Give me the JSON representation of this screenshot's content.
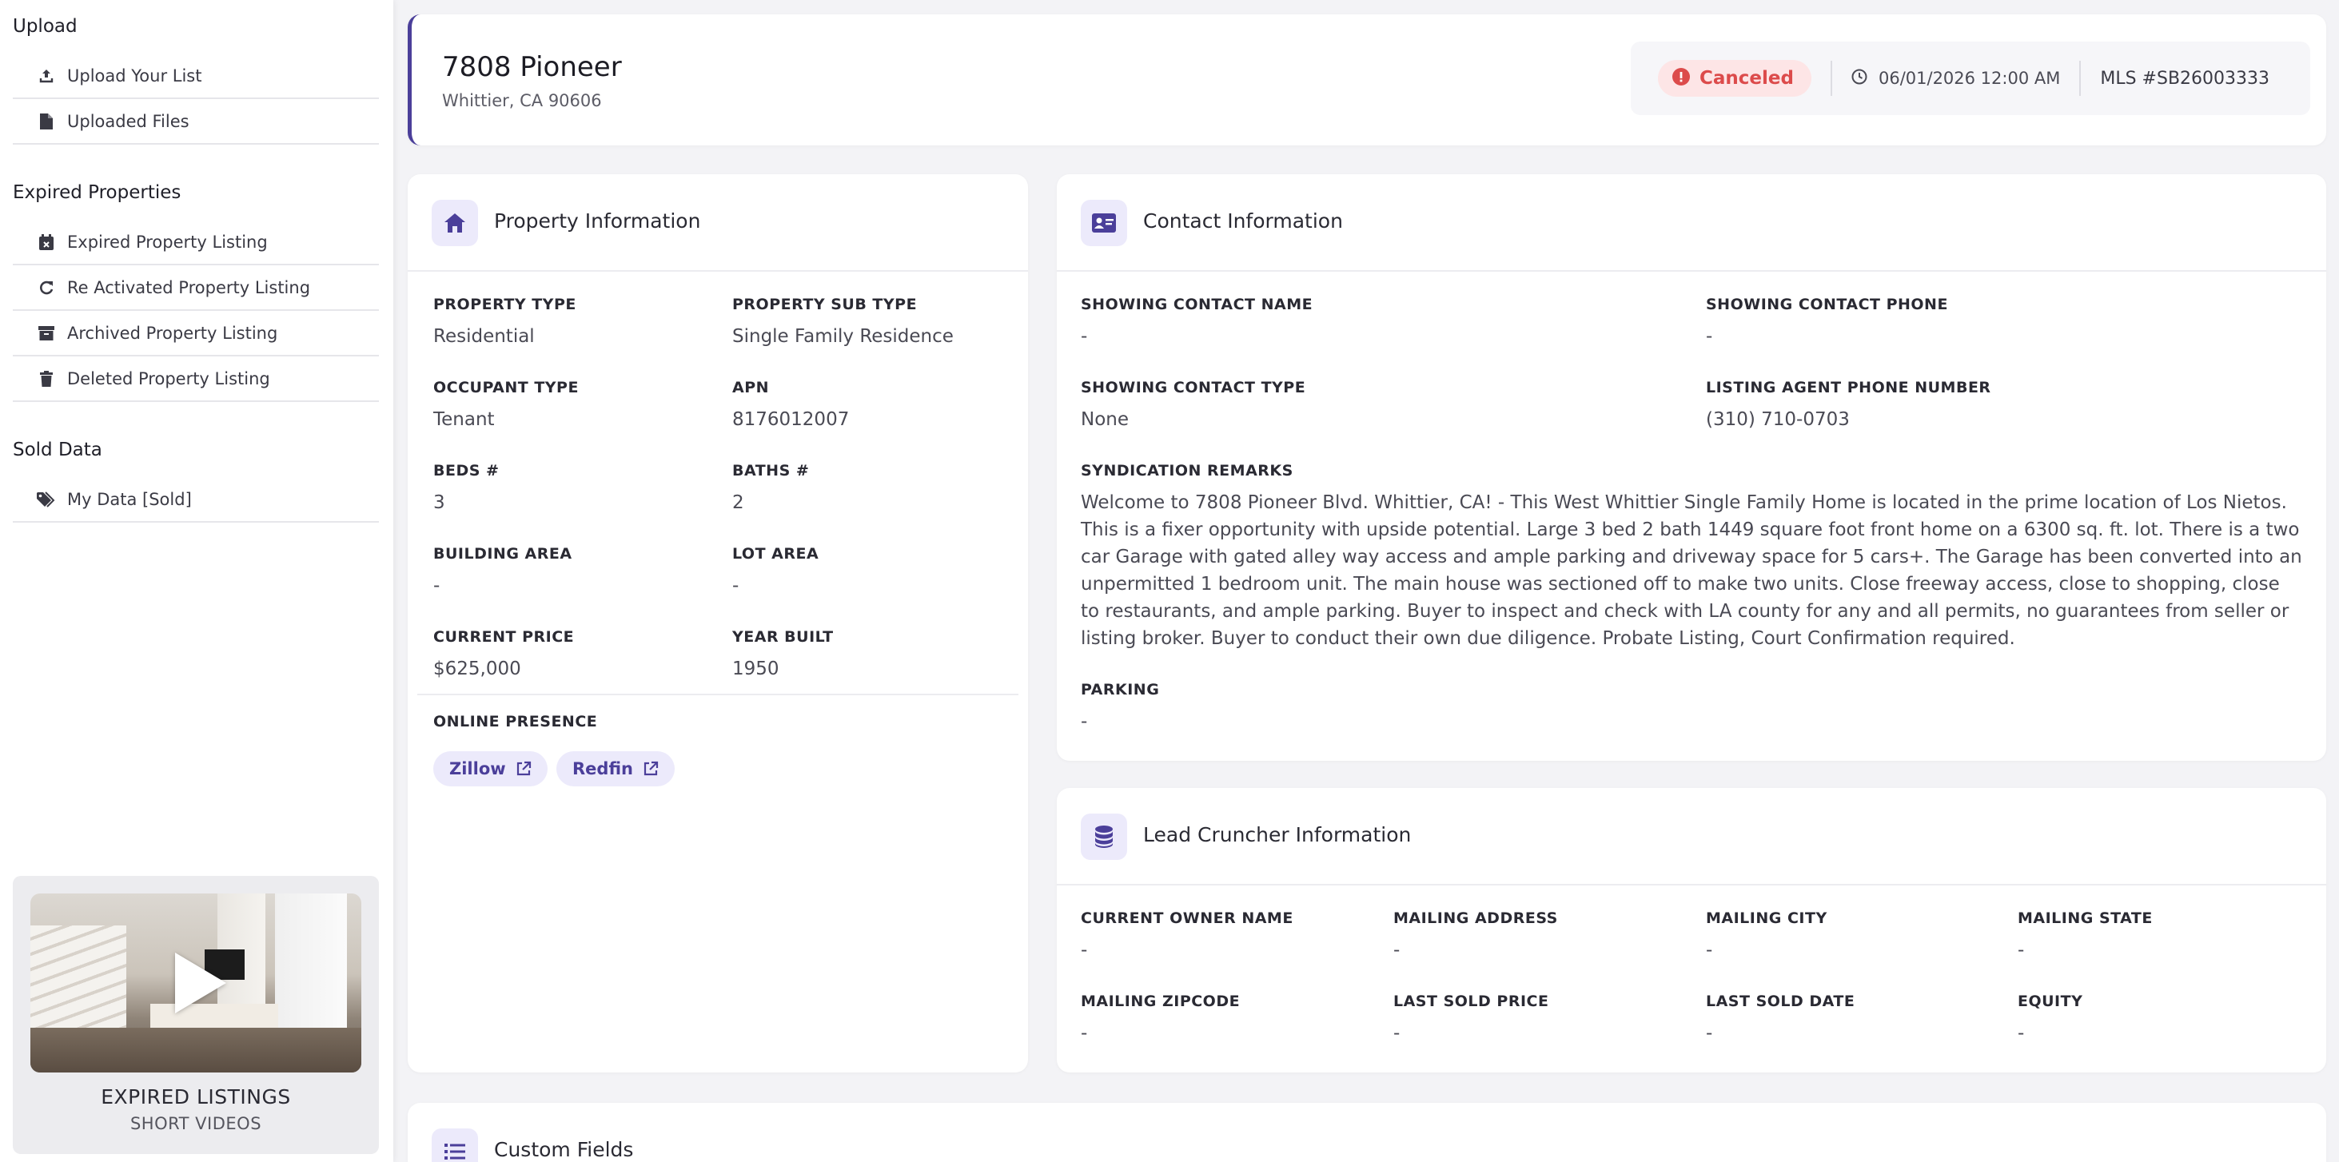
{
  "sidebar": {
    "upload_title": "Upload",
    "upload_items": [
      {
        "label": "Upload Your List",
        "icon": "upload-icon"
      },
      {
        "label": "Uploaded Files",
        "icon": "file-icon"
      }
    ],
    "expired_title": "Expired Properties",
    "expired_items": [
      {
        "label": "Expired Property Listing",
        "icon": "calendar-x-icon"
      },
      {
        "label": "Re Activated Property Listing",
        "icon": "refresh-icon"
      },
      {
        "label": "Archived Property Listing",
        "icon": "archive-icon"
      },
      {
        "label": "Deleted Property Listing",
        "icon": "trash-icon"
      }
    ],
    "sold_title": "Sold Data",
    "sold_items": [
      {
        "label": "My Data [Sold]",
        "icon": "tags-icon"
      }
    ],
    "video": {
      "title": "EXPIRED LISTINGS",
      "subtitle": "SHORT VIDEOS"
    }
  },
  "header": {
    "title": "7808 Pioneer",
    "subtitle": "Whittier, CA 90606",
    "status": "Canceled",
    "date": "06/01/2026 12:00 AM",
    "mls": "MLS #SB26003333"
  },
  "property_info": {
    "title": "Property Information",
    "fields": [
      {
        "label": "PROPERTY TYPE",
        "value": "Residential"
      },
      {
        "label": "PROPERTY SUB TYPE",
        "value": "Single Family Residence"
      },
      {
        "label": "OCCUPANT TYPE",
        "value": "Tenant"
      },
      {
        "label": "APN",
        "value": "8176012007"
      },
      {
        "label": "BEDS #",
        "value": "3"
      },
      {
        "label": "BATHS #",
        "value": "2"
      },
      {
        "label": "BUILDING AREA",
        "value": "-"
      },
      {
        "label": "LOT AREA",
        "value": "-"
      },
      {
        "label": "CURRENT PRICE",
        "value": "$625,000"
      },
      {
        "label": "YEAR BUILT",
        "value": "1950"
      }
    ],
    "online_label": "ONLINE PRESENCE",
    "links": [
      "Zillow",
      "Redfin"
    ]
  },
  "contact_info": {
    "title": "Contact Information",
    "fields": [
      {
        "label": "SHOWING CONTACT NAME",
        "value": "-"
      },
      {
        "label": "SHOWING CONTACT PHONE",
        "value": "-"
      },
      {
        "label": "SHOWING CONTACT TYPE",
        "value": "None"
      },
      {
        "label": "LISTING AGENT PHONE NUMBER",
        "value": "(310) 710-0703"
      }
    ],
    "remarks_label": "SYNDICATION REMARKS",
    "remarks": "Welcome to 7808 Pioneer Blvd. Whittier, CA! - This West Whittier Single Family Home is located in the prime location of Los Nietos. This is a fixer opportunity with upside potential. Large 3 bed 2 bath 1449 square foot front home on a 6300 sq. ft. lot. There is a two car Garage with gated alley way access and ample parking and driveway space for 5 cars+. The Garage has been converted into an unpermitted 1 bedroom unit. The main house was sectioned off to make two units. Close freeway access, close to shopping, close to restaurants, and ample parking. Buyer to inspect and check with LA county for any and all permits, no guarantees from seller or listing broker. Buyer to conduct their own due diligence. Probate Listing, Court Confirmation required.",
    "parking_label": "PARKING",
    "parking_value": "-"
  },
  "lead_info": {
    "title": "Lead Cruncher Information",
    "fields": [
      {
        "label": "CURRENT OWNER NAME",
        "value": "-"
      },
      {
        "label": "MAILING ADDRESS",
        "value": "-"
      },
      {
        "label": "MAILING CITY",
        "value": "-"
      },
      {
        "label": "MAILING STATE",
        "value": "-"
      },
      {
        "label": "MAILING ZIPCODE",
        "value": "-"
      },
      {
        "label": "LAST SOLD PRICE",
        "value": "-"
      },
      {
        "label": "LAST SOLD DATE",
        "value": "-"
      },
      {
        "label": "EQUITY",
        "value": "-"
      }
    ]
  },
  "custom_fields": {
    "title": "Custom Fields"
  },
  "colors": {
    "accent": "#4b3f9a",
    "accent_soft": "#eceafb",
    "status_red": "#dc4b4b",
    "status_red_bg": "#fde5e6"
  }
}
